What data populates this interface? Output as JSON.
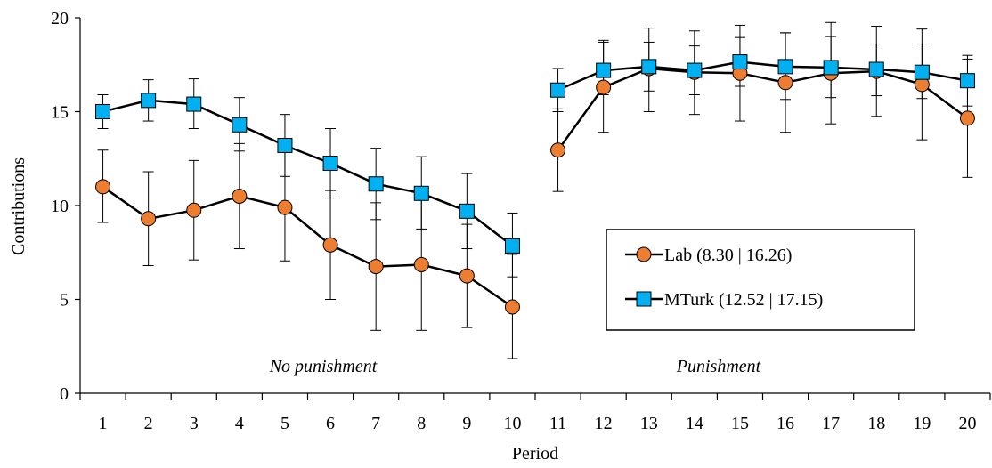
{
  "chart_data": {
    "type": "line",
    "xlabel": "Period",
    "ylabel": "Contributions",
    "categories": [
      "1",
      "2",
      "3",
      "4",
      "5",
      "6",
      "7",
      "8",
      "9",
      "10",
      "11",
      "12",
      "13",
      "14",
      "15",
      "16",
      "17",
      "18",
      "19",
      "20"
    ],
    "ylim": [
      0,
      20
    ],
    "yticks": [
      "0",
      "5",
      "10",
      "15",
      "20"
    ],
    "grid": false,
    "legend_position": "right",
    "annotations": [
      "No punishment",
      "Punishment"
    ],
    "segments": [
      [
        1,
        10
      ],
      [
        11,
        20
      ]
    ],
    "series": [
      {
        "name": "Lab (8.30 | 16.26)",
        "marker": "circle",
        "color": "#ed7d31",
        "values": [
          11.0,
          9.3,
          9.75,
          10.5,
          9.9,
          7.9,
          6.75,
          6.85,
          6.25,
          4.6,
          12.95,
          16.3,
          17.3,
          17.1,
          17.05,
          16.55,
          17.05,
          17.15,
          16.45,
          14.65
        ],
        "error_low": [
          9.1,
          6.8,
          7.1,
          7.7,
          7.05,
          5.0,
          3.35,
          3.35,
          3.5,
          1.85,
          10.75,
          13.9,
          15.0,
          14.85,
          14.5,
          13.9,
          14.35,
          14.75,
          13.5,
          11.5
        ],
        "error_high": [
          12.95,
          11.8,
          12.4,
          13.3,
          12.85,
          10.8,
          10.15,
          10.35,
          9.0,
          7.4,
          15.15,
          18.7,
          19.45,
          19.3,
          19.6,
          19.2,
          19.75,
          19.55,
          19.4,
          17.8
        ]
      },
      {
        "name": "MTurk (12.52 | 17.15)",
        "marker": "square",
        "color": "#00b0f0",
        "values": [
          15.0,
          15.6,
          15.4,
          14.3,
          13.2,
          12.25,
          11.15,
          10.65,
          9.7,
          7.85,
          16.15,
          17.2,
          17.4,
          17.2,
          17.65,
          17.4,
          17.35,
          17.25,
          17.1,
          16.65
        ],
        "error_low": [
          14.1,
          14.5,
          14.1,
          12.9,
          11.55,
          10.4,
          9.25,
          8.75,
          7.7,
          6.2,
          15.0,
          15.9,
          16.1,
          15.9,
          16.35,
          15.65,
          15.75,
          15.85,
          15.7,
          15.3
        ],
        "error_high": [
          15.9,
          16.7,
          16.75,
          15.75,
          14.85,
          14.1,
          13.05,
          12.6,
          11.7,
          9.6,
          17.3,
          18.8,
          18.7,
          18.5,
          18.95,
          19.2,
          19.0,
          18.6,
          18.6,
          18.0
        ]
      }
    ]
  }
}
